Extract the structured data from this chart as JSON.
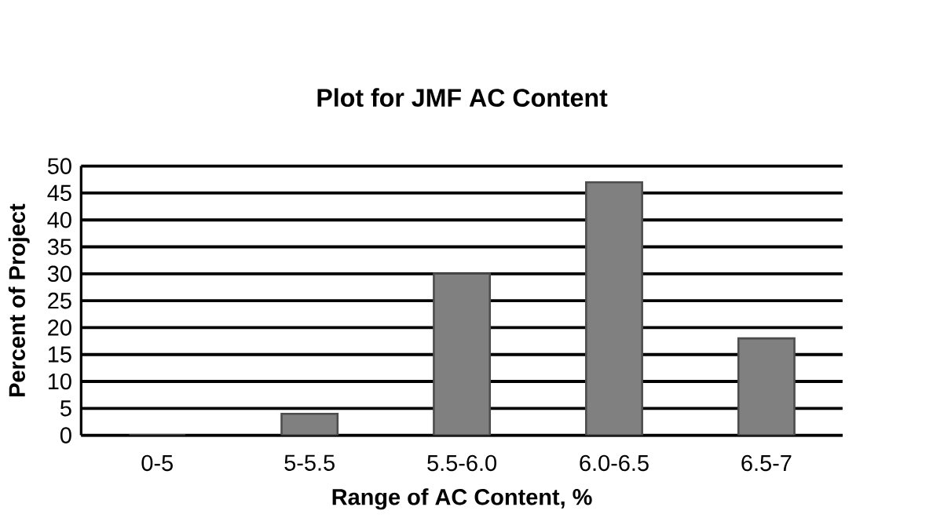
{
  "chart_data": {
    "type": "bar",
    "title": "Plot for JMF AC Content",
    "xlabel": "Range of AC Content, %",
    "ylabel": "Percent of Project",
    "categories": [
      "0-5",
      "5-5.5",
      "5.5-6.0",
      "6.0-6.5",
      "6.5-7"
    ],
    "values": [
      0,
      4,
      30,
      47,
      18
    ],
    "color": "#808080",
    "ylim": [
      0,
      50
    ],
    "yticks": [
      0,
      5,
      10,
      15,
      20,
      25,
      30,
      35,
      40,
      45,
      50
    ],
    "grid": "y"
  }
}
